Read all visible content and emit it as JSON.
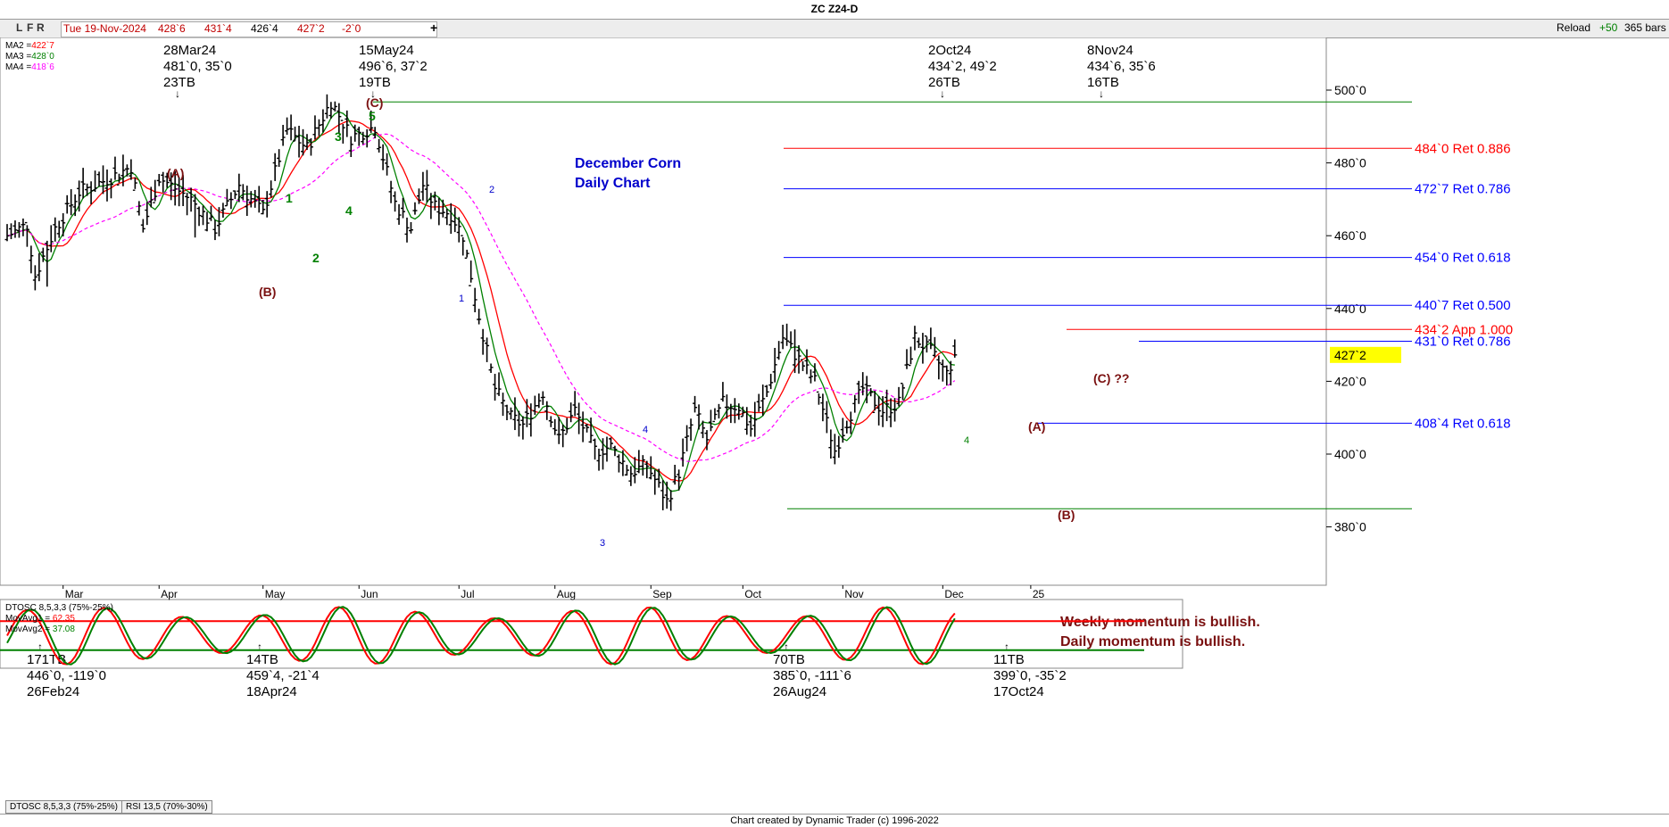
{
  "window": {
    "title": "ZC Z24-D"
  },
  "toolbar": {
    "buttons": [
      "L",
      "F",
      "R"
    ],
    "info": {
      "date": "Tue 19-Nov-2024",
      "open": "428`6",
      "high": "431`4",
      "low": "426`4",
      "close": "427`2",
      "change": "-2`0"
    },
    "plus": "+",
    "reload": "Reload",
    "offset": "+50",
    "bars": "365 bars"
  },
  "legend": [
    {
      "label": "MA2 =",
      "value": "422`7",
      "color": "#ff0000"
    },
    {
      "label": "MA3 =",
      "value": "428`0",
      "color": "#008000"
    },
    {
      "label": "MA4 =",
      "value": "418`6",
      "color": "#ff00ff"
    }
  ],
  "colors": {
    "price_bar": "#000000",
    "ma2": "#ff0000",
    "ma3": "#008000",
    "ma4": "#ff00ff",
    "ret_red": "#ff0000",
    "ret_blue": "#0000ff",
    "green_line": "#008000",
    "wave_label": "#7a1010",
    "price_tag": "#ffff00"
  },
  "chart_data": [
    {
      "type": "bar",
      "title": "ZC Z24-D",
      "y_axis": {
        "ticks": [
          "500`0",
          "480`0",
          "460`0",
          "440`0",
          "420`0",
          "400`0",
          "380`0"
        ],
        "ylim": [
          364,
          520
        ]
      },
      "x_axis": {
        "ticks": [
          "Mar",
          "Apr",
          "May",
          "Jun",
          "Jul",
          "Aug",
          "Sep",
          "Oct",
          "Nov",
          "Dec",
          "25"
        ]
      },
      "current_price": "427`2",
      "ohlc_close_anchors": [
        {
          "date": "2024-02-26",
          "low": 446.0
        },
        {
          "date": "2024-03-28",
          "high": 481.0
        },
        {
          "date": "2024-04-18",
          "low": 459.5
        },
        {
          "date": "2024-05-15",
          "high": 496.75
        },
        {
          "date": "2024-08-26",
          "low": 385.0
        },
        {
          "date": "2024-10-02",
          "high": 434.25
        },
        {
          "date": "2024-10-17",
          "low": 399.0
        },
        {
          "date": "2024-11-08",
          "high": 434.75
        },
        {
          "date": "2024-11-19",
          "close": 427.25
        }
      ],
      "lines": [
        {
          "label": "484`0 Ret 0.886",
          "value": 484.0,
          "color": "#ff0000"
        },
        {
          "label": "472`7 Ret 0.786",
          "value": 472.875,
          "color": "#0000ff"
        },
        {
          "label": "454`0 Ret 0.618",
          "value": 454.0,
          "color": "#0000ff"
        },
        {
          "label": "440`7 Ret 0.500",
          "value": 440.875,
          "color": "#0000ff"
        },
        {
          "label": "434`2 App 1.000",
          "value": 434.25,
          "color": "#ff0000"
        },
        {
          "label": "431`0 Ret 0.786",
          "value": 431.0,
          "color": "#0000ff"
        },
        {
          "label": "408`4 Ret 0.618",
          "value": 408.5,
          "color": "#0000ff"
        }
      ],
      "green_levels": [
        496.75,
        385.0
      ],
      "top_annotations": [
        {
          "date": "28Mar24",
          "values": "481`0, 35`0",
          "bars": "23TB"
        },
        {
          "date": "15May24",
          "values": "496`6, 37`2",
          "bars": "19TB"
        },
        {
          "date": "2Oct24",
          "values": "434`2, 49`2",
          "bars": "26TB"
        },
        {
          "date": "8Nov24",
          "values": "434`6, 35`6",
          "bars": "16TB"
        }
      ],
      "bottom_annotations": [
        {
          "bars": "171TB",
          "values": "446`0, -119`0",
          "date": "26Feb24"
        },
        {
          "bars": "14TB",
          "values": "459`4, -21`4",
          "date": "18Apr24"
        },
        {
          "bars": "70TB",
          "values": "385`0, -111`6",
          "date": "26Aug24"
        },
        {
          "bars": "11TB",
          "values": "399`0, -35`2",
          "date": "17Oct24"
        }
      ],
      "wave_labels": [
        {
          "text": "(A)",
          "color": "#7a1010"
        },
        {
          "text": "(B)",
          "color": "#7a1010"
        },
        {
          "text": "(C)",
          "color": "#7a1010"
        },
        {
          "text": "1",
          "color": "#008000"
        },
        {
          "text": "2",
          "color": "#008000"
        },
        {
          "text": "3",
          "color": "#008000"
        },
        {
          "text": "4",
          "color": "#008000"
        },
        {
          "text": "5",
          "color": "#008000"
        },
        {
          "text": "1",
          "color": "#0000cc"
        },
        {
          "text": "2",
          "color": "#0000cc"
        },
        {
          "text": "3",
          "color": "#0000cc"
        },
        {
          "text": "4",
          "color": "#0000cc"
        },
        {
          "text": "4",
          "color": "#008000"
        },
        {
          "text": "(A)",
          "color": "#7a1010"
        },
        {
          "text": "(B)",
          "color": "#7a1010"
        },
        {
          "text": "(C) ??",
          "color": "#7a1010"
        }
      ],
      "chart_note": [
        "December Corn",
        "Daily Chart"
      ],
      "momentum_note": [
        "Weekly momentum is bullish.",
        "Daily momentum is bullish."
      ]
    },
    {
      "type": "line",
      "title": "DTOSC 8,5,3,3 (75%-25%)",
      "series": [
        {
          "name": "MovAvg1",
          "value": "62.35",
          "color": "#ff0000"
        },
        {
          "name": "MovAvg2",
          "value": "37.08",
          "color": "#008000"
        }
      ],
      "levels": [
        75,
        25
      ]
    }
  ],
  "oscillator_tabs": [
    "DTOSC 8,5,3,3 (75%-25%)",
    "RSI 13,5 (70%-30%)"
  ],
  "footer": "Chart created by Dynamic Trader  (c) 1996-2022"
}
